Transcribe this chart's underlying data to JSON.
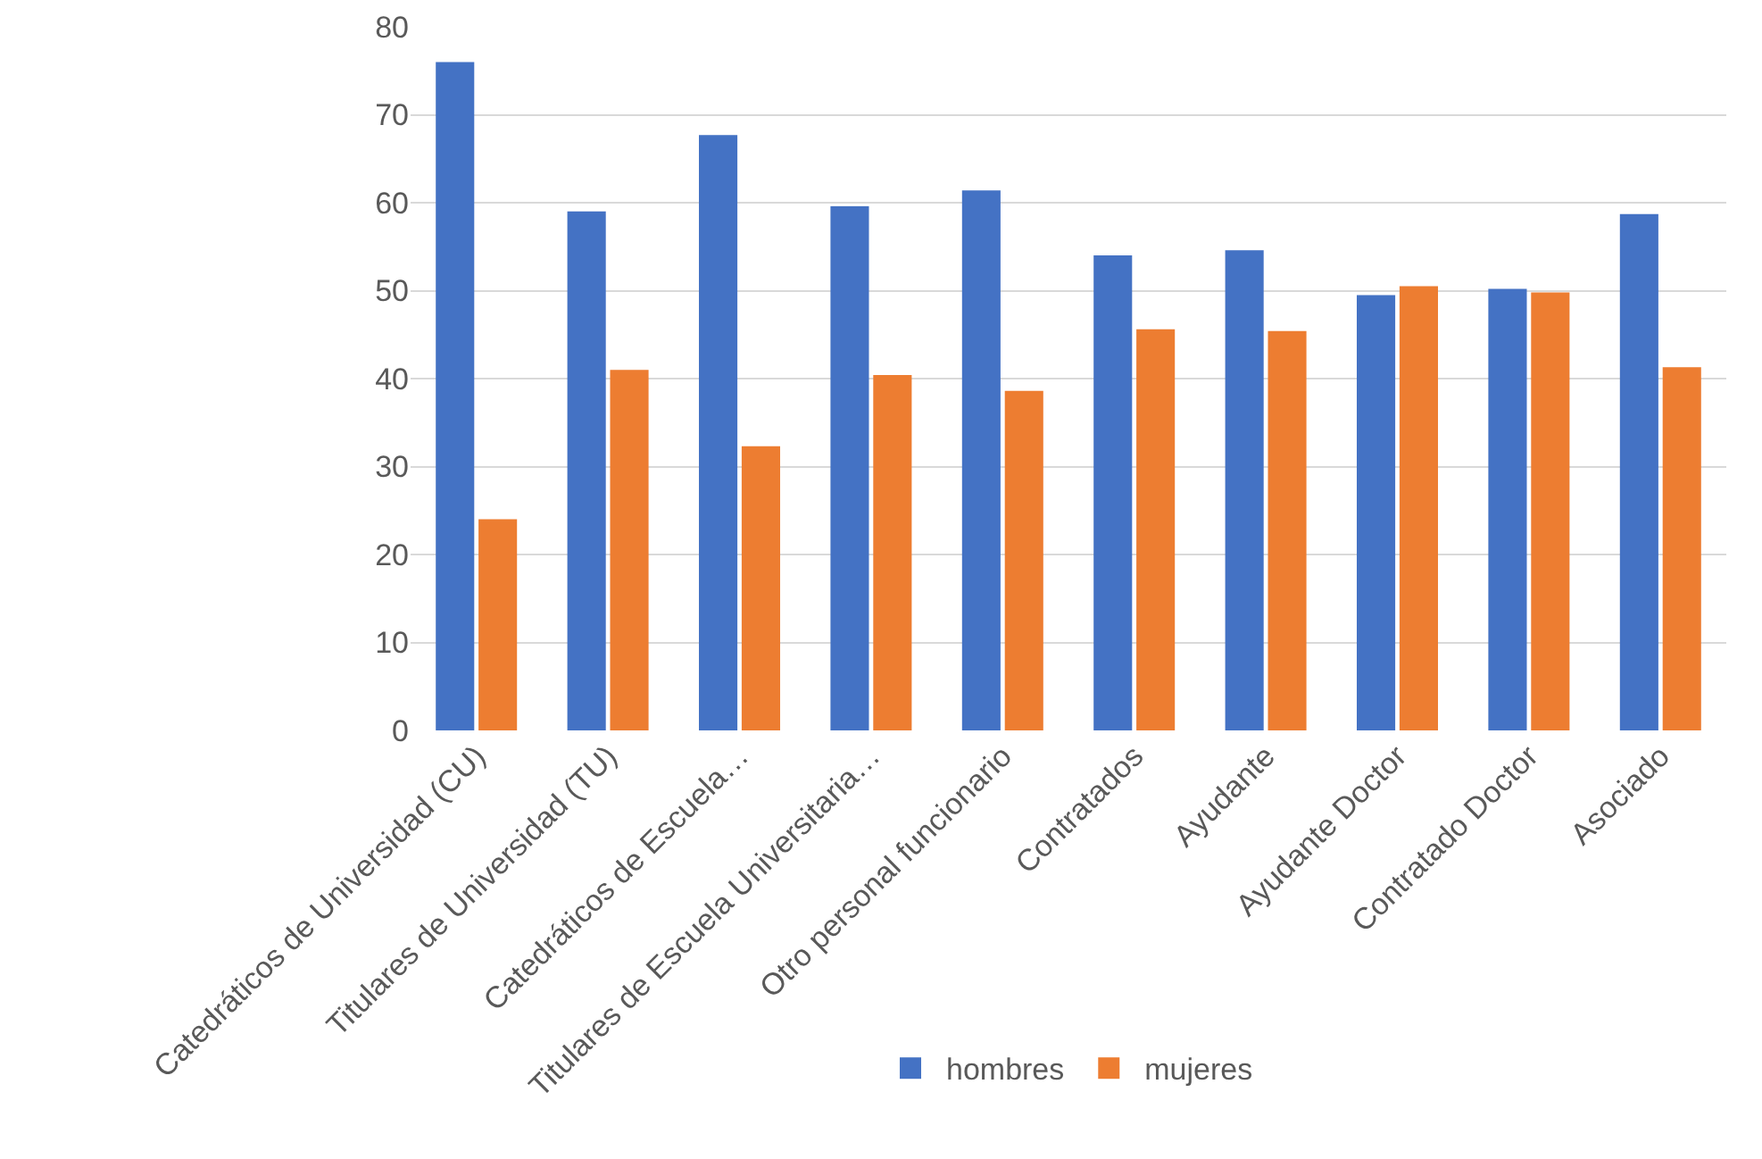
{
  "chart_data": {
    "type": "bar",
    "categories": [
      "Catedráticos de Universidad (CU)",
      "Titulares de Universidad (TU)",
      "Catedráticos de Escuela…",
      "Titulares de Escuela Universitaria…",
      "Otro personal funcionario",
      "Contratados",
      "Ayudante",
      "Ayudante Doctor",
      "Contratado Doctor",
      "Asociado"
    ],
    "series": [
      {
        "name": "hombres",
        "color": "#4472c4",
        "values": [
          76,
          59,
          67.7,
          59.6,
          61.4,
          54,
          54.6,
          49.5,
          50.2,
          58.7
        ]
      },
      {
        "name": "mujeres",
        "color": "#ed7d31",
        "values": [
          24,
          41,
          32.3,
          40.4,
          38.6,
          45.6,
          45.4,
          50.5,
          49.8,
          41.3
        ]
      }
    ],
    "ylim": [
      0,
      80
    ],
    "yticks": [
      0,
      10,
      20,
      30,
      40,
      50,
      60,
      70,
      80
    ],
    "grid": "y",
    "legend": "bottom"
  }
}
